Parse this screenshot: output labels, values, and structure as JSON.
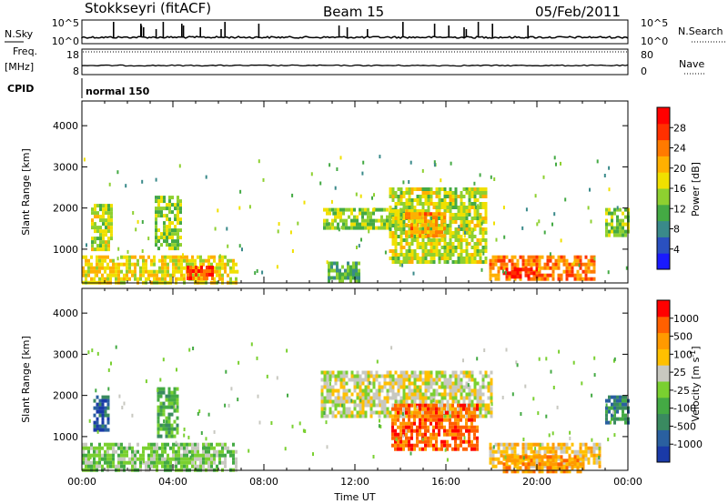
{
  "header": {
    "title": "Stokkseyri (fitACF)",
    "beam": "Beam 15",
    "date": "05/Feb/2011"
  },
  "chart_data": [
    {
      "type": "line",
      "panel": "nsky-nsearch",
      "left_label": "N.Sky",
      "right_label": "N.Search",
      "left_ticks": [
        "10^5",
        "10^0"
      ],
      "right_ticks": [
        "10^5",
        "10^0"
      ],
      "scale": "log"
    },
    {
      "type": "line",
      "panel": "freq-nave",
      "left_label_line1": "Freq.",
      "left_label_line2": "[MHz]",
      "right_label": "Nave",
      "left_ticks": [
        "18",
        "8"
      ],
      "right_ticks": [
        "80",
        "0"
      ],
      "ylim_left": [
        8,
        18
      ],
      "ylim_right": [
        0,
        80
      ]
    },
    {
      "type": "table",
      "panel": "cpid",
      "label": "CPID",
      "program": "normal 150"
    },
    {
      "type": "heatmap",
      "panel": "power",
      "ylabel": "Slant Range [km]",
      "xlabel": "",
      "y_ticks": [
        "4000",
        "3000",
        "2000",
        "1000"
      ],
      "ylim": [
        180,
        4600
      ],
      "colorbar_label": "Power [dB]",
      "colorbar_ticks": [
        "28",
        "24",
        "20",
        "16",
        "12",
        "8",
        "4"
      ],
      "colorbar_range": [
        0,
        32
      ],
      "colors": [
        "#1a1aff",
        "#2a50c0",
        "#3a8a8a",
        "#44aa44",
        "#8ed030",
        "#f0e000",
        "#ffb000",
        "#ff7a00",
        "#ff3000",
        "#ff0000"
      ],
      "regions": [
        {
          "t": [
            0.0,
            6.8
          ],
          "r": [
            180,
            850
          ],
          "level": 18
        },
        {
          "t": [
            0.4,
            1.3
          ],
          "r": [
            1000,
            2100
          ],
          "level": 16
        },
        {
          "t": [
            3.2,
            4.3
          ],
          "r": [
            1000,
            2300
          ],
          "level": 14
        },
        {
          "t": [
            4.6,
            5.8
          ],
          "r": [
            300,
            600
          ],
          "level": 27
        },
        {
          "t": [
            10.6,
            14.3
          ],
          "r": [
            1500,
            2000
          ],
          "level": 14
        },
        {
          "t": [
            13.5,
            17.8
          ],
          "r": [
            700,
            2500
          ],
          "level": 16
        },
        {
          "t": [
            14.2,
            16.0
          ],
          "r": [
            1300,
            1900
          ],
          "level": 22
        },
        {
          "t": [
            10.8,
            12.2
          ],
          "r": [
            180,
            700
          ],
          "level": 12
        },
        {
          "t": [
            17.9,
            22.5
          ],
          "r": [
            300,
            850
          ],
          "level": 24
        },
        {
          "t": [
            18.5,
            20.0
          ],
          "r": [
            300,
            550
          ],
          "level": 30
        },
        {
          "t": [
            23.0,
            24.0
          ],
          "r": [
            1300,
            2000
          ],
          "level": 14
        }
      ]
    },
    {
      "type": "heatmap",
      "panel": "velocity",
      "ylabel": "Slant Range [km]",
      "xlabel": "Time UT",
      "y_ticks": [
        "4000",
        "3000",
        "2000",
        "1000"
      ],
      "ylim": [
        180,
        4600
      ],
      "x_ticks": [
        "00:00",
        "04:00",
        "08:00",
        "12:00",
        "16:00",
        "20:00",
        "00:00"
      ],
      "colorbar_label": "Velocity [m s",
      "colorbar_label_sup": "-1",
      "colorbar_ticks": [
        "1000",
        "500",
        "100",
        "25",
        "-25",
        "-100",
        "-500",
        "-1000"
      ],
      "colors": [
        "#1a3aa8",
        "#2a60a0",
        "#3a8a60",
        "#44aa44",
        "#7ad030",
        "#c8c8c0",
        "#ffc000",
        "#ff9a00",
        "#ff6000",
        "#ff0000"
      ],
      "regions": [
        {
          "t": [
            0.0,
            6.8
          ],
          "r": [
            180,
            850
          ],
          "level": 4
        },
        {
          "t": [
            0.5,
            1.2
          ],
          "r": [
            1200,
            2000
          ],
          "level": 1
        },
        {
          "t": [
            3.3,
            4.2
          ],
          "r": [
            1000,
            2200
          ],
          "level": 3
        },
        {
          "t": [
            10.5,
            18.0
          ],
          "r": [
            1500,
            2600
          ],
          "level": 5
        },
        {
          "t": [
            13.6,
            17.4
          ],
          "r": [
            700,
            1800
          ],
          "level": 8
        },
        {
          "t": [
            17.9,
            22.8
          ],
          "r": [
            300,
            850
          ],
          "level": 6
        },
        {
          "t": [
            18.5,
            22.0
          ],
          "r": [
            180,
            550
          ],
          "level": 7
        },
        {
          "t": [
            23.0,
            24.0
          ],
          "r": [
            1300,
            2000
          ],
          "level": 2
        }
      ]
    }
  ]
}
